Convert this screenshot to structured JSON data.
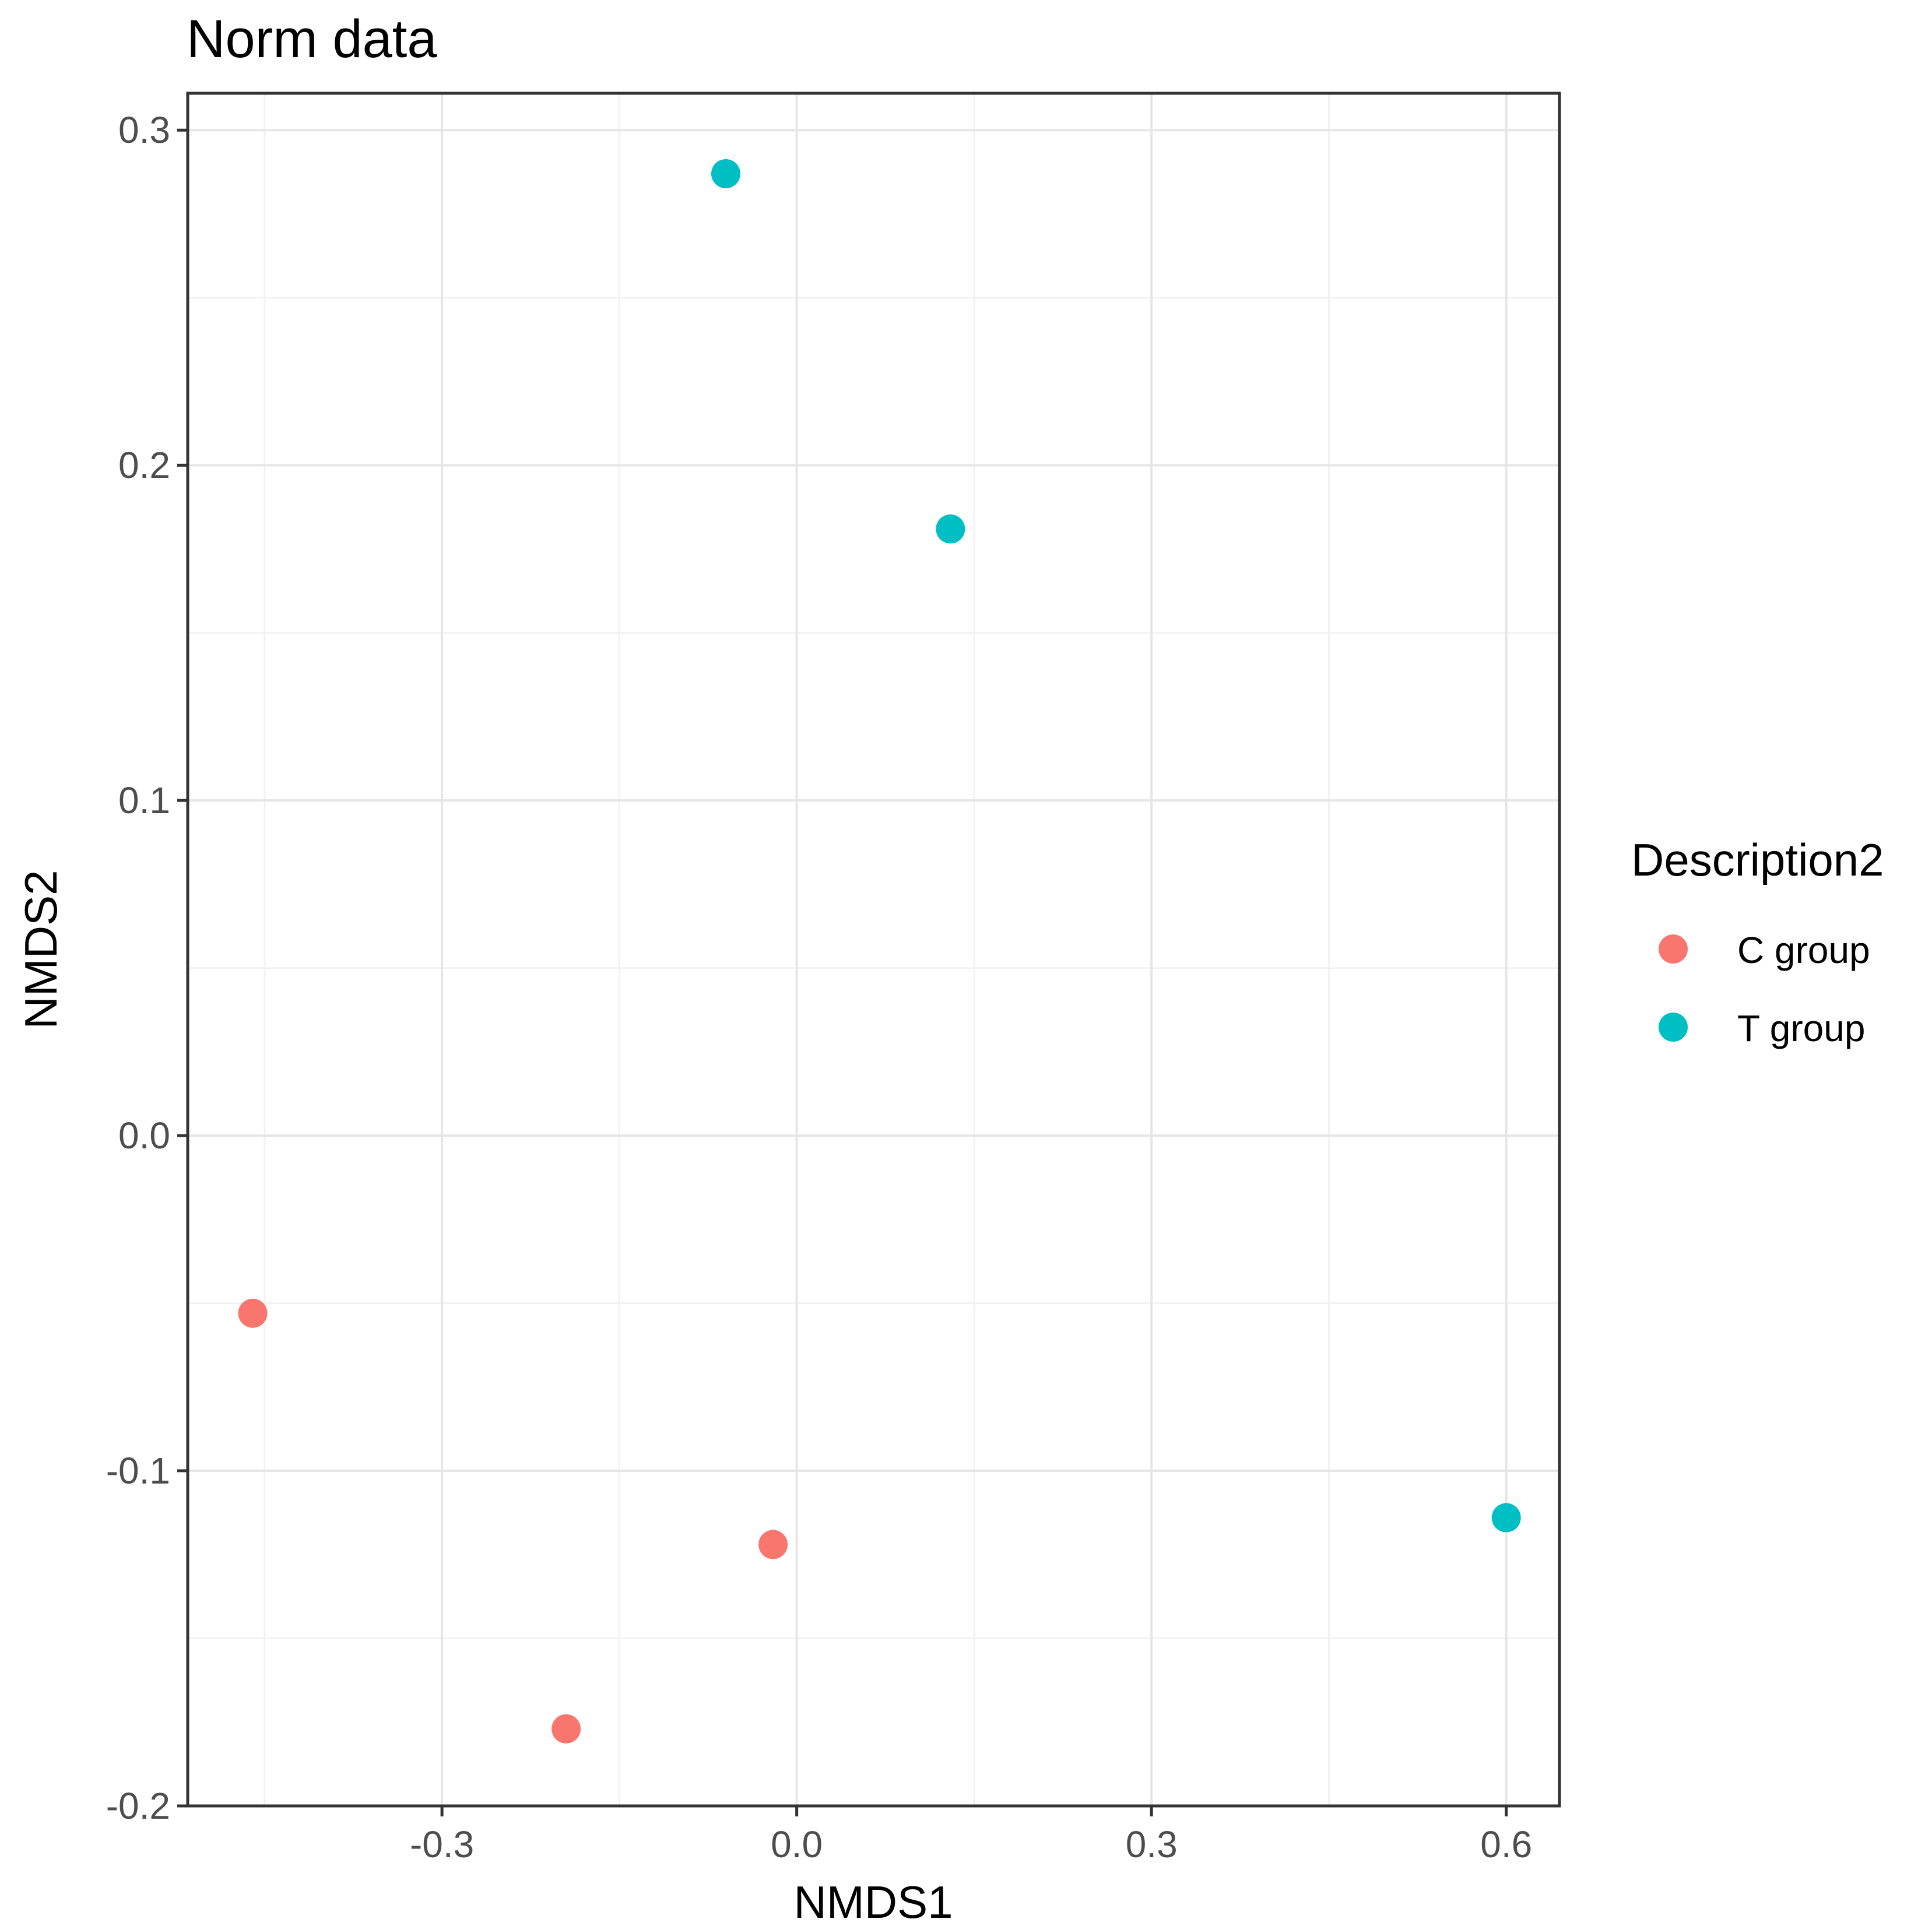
{
  "chart_data": {
    "type": "scatter",
    "title": "Norm data",
    "xlabel": "NMDS1",
    "ylabel": "NMDS2",
    "xlim": [
      -0.515,
      0.645
    ],
    "ylim": [
      -0.2,
      0.311
    ],
    "x_ticks": [
      -0.3,
      0.0,
      0.3,
      0.6
    ],
    "x_tick_labels": [
      "-0.3",
      "0.0",
      "0.3",
      "0.6"
    ],
    "y_ticks": [
      -0.2,
      -0.1,
      0.0,
      0.1,
      0.2,
      0.3
    ],
    "y_tick_labels": [
      "-0.2",
      "-0.1",
      "0.0",
      "0.1",
      "0.2",
      "0.3"
    ],
    "grid": true,
    "legend": {
      "title": "Description2",
      "position": "right"
    },
    "series": [
      {
        "name": "C group",
        "color": "#F8766D",
        "points": [
          {
            "x": -0.46,
            "y": -0.053
          },
          {
            "x": -0.195,
            "y": -0.177
          },
          {
            "x": -0.02,
            "y": -0.122
          }
        ]
      },
      {
        "name": "T group",
        "color": "#00BFC4",
        "points": [
          {
            "x": -0.06,
            "y": 0.287
          },
          {
            "x": 0.13,
            "y": 0.181
          },
          {
            "x": 0.6,
            "y": -0.114
          }
        ]
      }
    ]
  }
}
